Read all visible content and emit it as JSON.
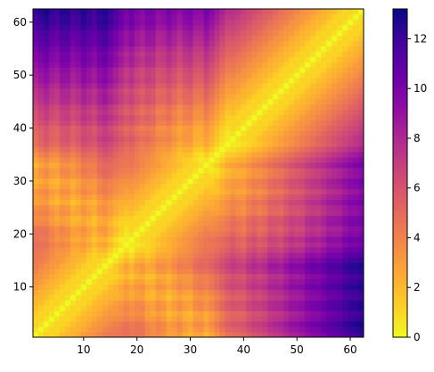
{
  "chart_data": {
    "type": "heatmap",
    "title": "",
    "xlabel": "",
    "ylabel": "",
    "n": 62,
    "x_range": [
      1,
      62
    ],
    "y_range": [
      1,
      62
    ],
    "x_ticks": [
      10,
      20,
      30,
      40,
      50,
      60
    ],
    "y_ticks": [
      10,
      20,
      30,
      40,
      50,
      60
    ],
    "colormap": "plasma_r",
    "vmin": 0,
    "vmax": 13.2,
    "colorbar_ticks": [
      0,
      2,
      4,
      6,
      8,
      10,
      12
    ],
    "diagonal_value": 0,
    "grid": false,
    "legend": "none",
    "matrix_description": "symmetric residue distance matrix; near-zero along the diagonal, low values in the block of residues 1-40, highest values between residues ~40-62 and ~1-35",
    "regions": [
      {
        "residues_a": [
          1,
          40
        ],
        "residues_b": [
          1,
          40
        ],
        "typical_value": 3.5
      },
      {
        "residues_a": [
          40,
          62
        ],
        "residues_b": [
          40,
          62
        ],
        "typical_value": 4.5
      },
      {
        "residues_a": [
          42,
          62
        ],
        "residues_b": [
          1,
          35
        ],
        "typical_value": 10
      },
      {
        "residues_a": [
          55,
          62
        ],
        "residues_b": [
          5,
          12
        ],
        "typical_value": 12.8
      }
    ]
  }
}
